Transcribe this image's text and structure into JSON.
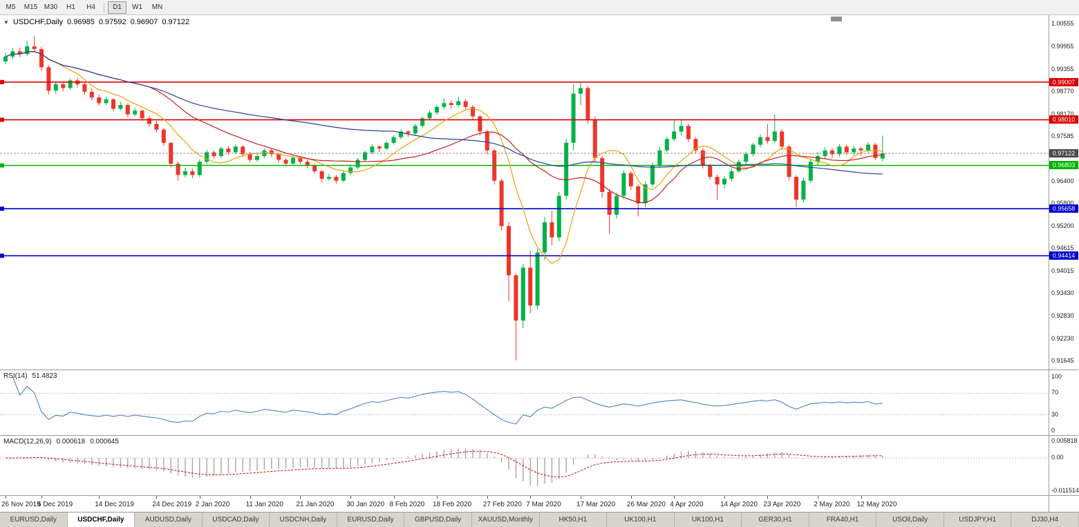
{
  "toolbar": {
    "timeframes": [
      {
        "label": "M5",
        "active": false
      },
      {
        "label": "M15",
        "active": false
      },
      {
        "label": "M30",
        "active": false
      },
      {
        "label": "H1",
        "active": false
      },
      {
        "label": "H4",
        "active": false
      },
      {
        "label": "D1",
        "active": true
      },
      {
        "label": "W1",
        "active": false
      },
      {
        "label": "MN",
        "active": false
      }
    ]
  },
  "chart_header": {
    "collapse_icon": "▼",
    "symbol": "USDCHF,Daily",
    "open": "0.96985",
    "high": "0.97592",
    "low": "0.96907",
    "close": "0.97122"
  },
  "chart_data": {
    "type": "candlestick",
    "symbol": "USDCHF",
    "timeframe": "Daily",
    "price_panel": {
      "axis_max": 1.00555,
      "axis_min": 0.91645,
      "axis_ticks": [
        "1.00555",
        "0.99955",
        "0.99355",
        "0.98770",
        "0.98170",
        "0.97585",
        "0.96400",
        "0.95800",
        "0.95200",
        "0.94615",
        "0.94015",
        "0.93430",
        "0.92830",
        "0.92230",
        "0.91645"
      ],
      "up_color": "#00b246",
      "down_color": "#ef3528",
      "moving_averages": [
        {
          "name": "fast",
          "period": 8,
          "color": "#eea000"
        },
        {
          "name": "medium",
          "period": 21,
          "color": "#c02020"
        },
        {
          "name": "slow",
          "period": 55,
          "color": "#24409e"
        }
      ],
      "h_lines": [
        {
          "price": 0.99007,
          "label": "0.99007",
          "color": "#dd0000",
          "role": "resistance"
        },
        {
          "price": 0.9801,
          "label": "0.98010",
          "color": "#dd0000",
          "role": "resistance"
        },
        {
          "price": 0.96803,
          "label": "0.96803",
          "color": "#00b300",
          "role": "pivot"
        },
        {
          "price": 0.95658,
          "label": "0.95658",
          "color": "#0000cd",
          "role": "support"
        },
        {
          "price": 0.94414,
          "label": "0.94414",
          "color": "#0000cd",
          "role": "support"
        }
      ],
      "current_price": {
        "value": 0.97122,
        "label": "0.97122",
        "tag_color": "#4a4a4a"
      },
      "candles": [
        [
          0.9955,
          0.9978,
          0.9948,
          0.9968
        ],
        [
          0.9968,
          0.999,
          0.996,
          0.9982
        ],
        [
          0.9982,
          0.9992,
          0.9966,
          0.9975
        ],
        [
          0.9975,
          1.001,
          0.997,
          0.9995
        ],
        [
          0.9995,
          1.0023,
          0.998,
          0.9988
        ],
        [
          0.9988,
          0.9994,
          0.993,
          0.994
        ],
        [
          0.994,
          0.9945,
          0.9868,
          0.9878
        ],
        [
          0.9878,
          0.99,
          0.987,
          0.9895
        ],
        [
          0.9895,
          0.9903,
          0.9876,
          0.9885
        ],
        [
          0.9885,
          0.991,
          0.988,
          0.9905
        ],
        [
          0.9905,
          0.9912,
          0.9886,
          0.9895
        ],
        [
          0.9895,
          0.99,
          0.9868,
          0.9875
        ],
        [
          0.9875,
          0.9884,
          0.9852,
          0.986
        ],
        [
          0.986,
          0.9868,
          0.9838,
          0.9845
        ],
        [
          0.9845,
          0.9862,
          0.984,
          0.9855
        ],
        [
          0.9855,
          0.9858,
          0.9824,
          0.983
        ],
        [
          0.983,
          0.9848,
          0.9826,
          0.984
        ],
        [
          0.984,
          0.9844,
          0.9808,
          0.9815
        ],
        [
          0.9815,
          0.9832,
          0.981,
          0.9825
        ],
        [
          0.9825,
          0.9828,
          0.9798,
          0.9805
        ],
        [
          0.9805,
          0.9812,
          0.9782,
          0.979
        ],
        [
          0.979,
          0.9798,
          0.9768,
          0.9775
        ],
        [
          0.9775,
          0.9778,
          0.9732,
          0.974
        ],
        [
          0.974,
          0.9742,
          0.9676,
          0.9685
        ],
        [
          0.9685,
          0.969,
          0.964,
          0.9655
        ],
        [
          0.9655,
          0.9674,
          0.9648,
          0.9665
        ],
        [
          0.9665,
          0.9672,
          0.9646,
          0.9655
        ],
        [
          0.9655,
          0.9696,
          0.965,
          0.969
        ],
        [
          0.969,
          0.9722,
          0.9684,
          0.9715
        ],
        [
          0.9715,
          0.972,
          0.9698,
          0.9705
        ],
        [
          0.9705,
          0.973,
          0.97,
          0.9725
        ],
        [
          0.9725,
          0.9731,
          0.9708,
          0.9715
        ],
        [
          0.9715,
          0.9736,
          0.971,
          0.973
        ],
        [
          0.973,
          0.9734,
          0.9702,
          0.971
        ],
        [
          0.971,
          0.9716,
          0.9688,
          0.9695
        ],
        [
          0.9695,
          0.9712,
          0.969,
          0.9705
        ],
        [
          0.9705,
          0.9726,
          0.97,
          0.972
        ],
        [
          0.972,
          0.9724,
          0.9702,
          0.971
        ],
        [
          0.971,
          0.9714,
          0.9688,
          0.9695
        ],
        [
          0.9695,
          0.97,
          0.9678,
          0.9685
        ],
        [
          0.9685,
          0.9706,
          0.968,
          0.97
        ],
        [
          0.97,
          0.9705,
          0.9684,
          0.969
        ],
        [
          0.969,
          0.9696,
          0.9672,
          0.968
        ],
        [
          0.968,
          0.9684,
          0.9658,
          0.9665
        ],
        [
          0.9665,
          0.9668,
          0.9635,
          0.9645
        ],
        [
          0.9645,
          0.9658,
          0.964,
          0.965
        ],
        [
          0.965,
          0.9655,
          0.9632,
          0.964
        ],
        [
          0.964,
          0.9666,
          0.9636,
          0.966
        ],
        [
          0.966,
          0.9682,
          0.9655,
          0.9675
        ],
        [
          0.9675,
          0.97,
          0.967,
          0.9695
        ],
        [
          0.9695,
          0.972,
          0.969,
          0.9715
        ],
        [
          0.9715,
          0.9736,
          0.971,
          0.973
        ],
        [
          0.973,
          0.9734,
          0.9716,
          0.9725
        ],
        [
          0.9725,
          0.9746,
          0.972,
          0.974
        ],
        [
          0.974,
          0.976,
          0.9735,
          0.9755
        ],
        [
          0.9755,
          0.9775,
          0.975,
          0.977
        ],
        [
          0.977,
          0.9774,
          0.9756,
          0.9765
        ],
        [
          0.9765,
          0.979,
          0.976,
          0.9785
        ],
        [
          0.9785,
          0.981,
          0.978,
          0.9805
        ],
        [
          0.9805,
          0.9826,
          0.98,
          0.982
        ],
        [
          0.982,
          0.984,
          0.9814,
          0.9835
        ],
        [
          0.9835,
          0.9858,
          0.9828,
          0.9845
        ],
        [
          0.9845,
          0.9852,
          0.983,
          0.984
        ],
        [
          0.984,
          0.9862,
          0.9834,
          0.985
        ],
        [
          0.985,
          0.9856,
          0.9826,
          0.9835
        ],
        [
          0.9835,
          0.984,
          0.98,
          0.981
        ],
        [
          0.981,
          0.9814,
          0.976,
          0.977
        ],
        [
          0.977,
          0.9775,
          0.971,
          0.972
        ],
        [
          0.972,
          0.9724,
          0.963,
          0.964
        ],
        [
          0.964,
          0.9645,
          0.9508,
          0.952
        ],
        [
          0.952,
          0.953,
          0.932,
          0.939
        ],
        [
          0.939,
          0.9395,
          0.9165,
          0.927
        ],
        [
          0.927,
          0.942,
          0.925,
          0.941
        ],
        [
          0.941,
          0.9455,
          0.929,
          0.931
        ],
        [
          0.931,
          0.946,
          0.93,
          0.945
        ],
        [
          0.945,
          0.9545,
          0.943,
          0.953
        ],
        [
          0.953,
          0.956,
          0.947,
          0.949
        ],
        [
          0.949,
          0.961,
          0.948,
          0.96
        ],
        [
          0.96,
          0.975,
          0.959,
          0.974
        ],
        [
          0.974,
          0.9895,
          0.972,
          0.987
        ],
        [
          0.987,
          0.9901,
          0.984,
          0.9885
        ],
        [
          0.9885,
          0.989,
          0.979,
          0.98
        ],
        [
          0.98,
          0.981,
          0.969,
          0.97
        ],
        [
          0.97,
          0.9706,
          0.9595,
          0.961
        ],
        [
          0.961,
          0.9618,
          0.95,
          0.955
        ],
        [
          0.955,
          0.9608,
          0.954,
          0.96
        ],
        [
          0.96,
          0.9668,
          0.9592,
          0.966
        ],
        [
          0.966,
          0.9665,
          0.9615,
          0.9625
        ],
        [
          0.9625,
          0.963,
          0.9545,
          0.958
        ],
        [
          0.958,
          0.9638,
          0.957,
          0.963
        ],
        [
          0.963,
          0.9688,
          0.9624,
          0.968
        ],
        [
          0.968,
          0.9728,
          0.9674,
          0.972
        ],
        [
          0.972,
          0.9756,
          0.9714,
          0.975
        ],
        [
          0.975,
          0.98,
          0.9744,
          0.977
        ],
        [
          0.977,
          0.9802,
          0.976,
          0.9785
        ],
        [
          0.9785,
          0.979,
          0.9742,
          0.975
        ],
        [
          0.975,
          0.9755,
          0.9712,
          0.972
        ],
        [
          0.972,
          0.9726,
          0.9672,
          0.968
        ],
        [
          0.968,
          0.9685,
          0.9642,
          0.965
        ],
        [
          0.965,
          0.9656,
          0.959,
          0.963
        ],
        [
          0.963,
          0.9652,
          0.962,
          0.9645
        ],
        [
          0.9645,
          0.9672,
          0.9638,
          0.9665
        ],
        [
          0.9665,
          0.9696,
          0.966,
          0.969
        ],
        [
          0.969,
          0.9716,
          0.9684,
          0.971
        ],
        [
          0.971,
          0.974,
          0.9704,
          0.9735
        ],
        [
          0.9735,
          0.9762,
          0.9728,
          0.9755
        ],
        [
          0.9755,
          0.979,
          0.9738,
          0.9745
        ],
        [
          0.9745,
          0.9815,
          0.974,
          0.977
        ],
        [
          0.977,
          0.9776,
          0.9722,
          0.973
        ],
        [
          0.973,
          0.9735,
          0.964,
          0.965
        ],
        [
          0.965,
          0.9655,
          0.957,
          0.959
        ],
        [
          0.959,
          0.9648,
          0.9582,
          0.964
        ],
        [
          0.964,
          0.9698,
          0.9634,
          0.969
        ],
        [
          0.969,
          0.9716,
          0.9682,
          0.9705
        ],
        [
          0.9705,
          0.9728,
          0.9698,
          0.972
        ],
        [
          0.972,
          0.9725,
          0.97,
          0.971
        ],
        [
          0.971,
          0.9737,
          0.9704,
          0.973
        ],
        [
          0.973,
          0.9735,
          0.9708,
          0.9715
        ],
        [
          0.9715,
          0.9732,
          0.9708,
          0.9725
        ],
        [
          0.9725,
          0.973,
          0.9706,
          0.972
        ],
        [
          0.972,
          0.9742,
          0.9714,
          0.9735
        ],
        [
          0.9735,
          0.974,
          0.9695,
          0.97
        ],
        [
          0.96985,
          0.97592,
          0.96907,
          0.97122
        ]
      ]
    },
    "rsi_panel": {
      "label": "RSI(14)",
      "value": "51.4823",
      "period": 14,
      "levels": [
        70,
        30
      ],
      "axis_labels": [
        "100",
        "70",
        "30",
        "0"
      ],
      "axis_values": [
        100,
        70,
        30,
        0
      ],
      "line_color": "#4f81bd"
    },
    "macd_panel": {
      "label": "MACD(12,26,9)",
      "macd_value": "0.000618",
      "signal_value": "0.000645",
      "fast": 12,
      "slow": 26,
      "signal": 9,
      "axis_max": 0.005818,
      "axis_min": -0.011514,
      "axis_labels": [
        {
          "text": "0.005818",
          "value": 0.005818
        },
        {
          "text": "0.00",
          "value": 0
        },
        {
          "text": "-0.011514",
          "value": -0.011514
        }
      ],
      "bar_color": "#a6a6a6",
      "signal_color": "#d40000"
    },
    "x_axis": {
      "labels": [
        {
          "text": "26 Nov 2019",
          "index": 0
        },
        {
          "text": "5 Dec 2019",
          "index": 5
        },
        {
          "text": "14 Dec 2019",
          "index": 13
        },
        {
          "text": "24 Dec 2019",
          "index": 21
        },
        {
          "text": "2 Jan 2020",
          "index": 27
        },
        {
          "text": "11 Jan 2020",
          "index": 34
        },
        {
          "text": "21 Jan 2020",
          "index": 41
        },
        {
          "text": "30 Jan 2020",
          "index": 48
        },
        {
          "text": "8 Feb 2020",
          "index": 54
        },
        {
          "text": "18 Feb 2020",
          "index": 60
        },
        {
          "text": "27 Feb 2020",
          "index": 67
        },
        {
          "text": "7 Mar 2020",
          "index": 73
        },
        {
          "text": "17 Mar 2020",
          "index": 80
        },
        {
          "text": "26 Mar 2020",
          "index": 87
        },
        {
          "text": "4 Apr 2020",
          "index": 93
        },
        {
          "text": "14 Apr 2020",
          "index": 100
        },
        {
          "text": "23 Apr 2020",
          "index": 106
        },
        {
          "text": "2 May 2020",
          "index": 113
        },
        {
          "text": "12 May 2020",
          "index": 119
        }
      ]
    }
  },
  "bottom_tabs": [
    {
      "label": "EURUSD,Daily",
      "active": false
    },
    {
      "label": "USDCHF,Daily",
      "active": true
    },
    {
      "label": "AUDUSD,Daily",
      "active": false
    },
    {
      "label": "USDCAD,Daily",
      "active": false
    },
    {
      "label": "USDCNH,Daily",
      "active": false
    },
    {
      "label": "EURUSD,Daily",
      "active": false
    },
    {
      "label": "GBPUSD,Daily",
      "active": false
    },
    {
      "label": "XAUUSD,Monthly",
      "active": false
    },
    {
      "label": "HK50,H1",
      "active": false
    },
    {
      "label": "UK100,H1",
      "active": false
    },
    {
      "label": "UK100,H1",
      "active": false
    },
    {
      "label": "GER30,H1",
      "active": false
    },
    {
      "label": "FRA40,H1",
      "active": false
    },
    {
      "label": "USOil,Daily",
      "active": false
    },
    {
      "label": "USDJPY,H1",
      "active": false
    },
    {
      "label": "DJ30,H4",
      "active": false
    }
  ]
}
